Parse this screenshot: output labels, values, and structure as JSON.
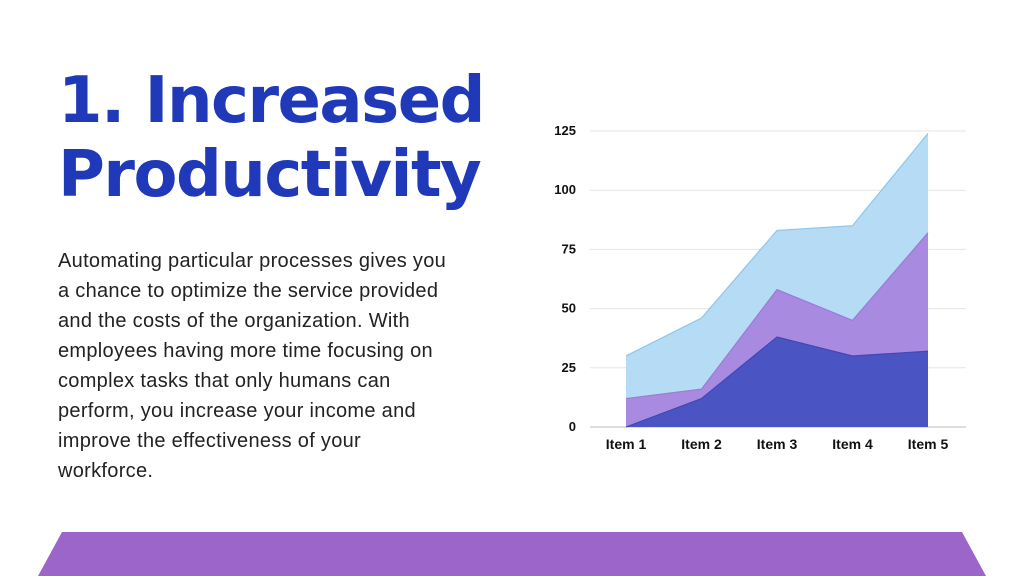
{
  "slide": {
    "title_line1": "1. Increased",
    "title_line2": "Productivity",
    "body": "Automating particular processes gives you a chance to optimize the service provided and the costs of the organization. With employees having more time focusing on complex tasks that only humans can perform, you increase your income and improve the effectiveness of your workforce."
  },
  "colors": {
    "title": "#1f39b8",
    "banner": "#9b65c9",
    "series_bottom": "#4a55c3",
    "series_middle": "#a88ae0",
    "series_top": "#b5dbf5"
  },
  "chart_data": {
    "type": "area",
    "stacked": true,
    "categories": [
      "Item 1",
      "Item 2",
      "Item 3",
      "Item 4",
      "Item 5"
    ],
    "series": [
      {
        "values": [
          0,
          12,
          38,
          30,
          32
        ]
      },
      {
        "values": [
          12,
          4,
          20,
          15,
          50
        ]
      },
      {
        "values": [
          18,
          30,
          25,
          40,
          42
        ]
      }
    ],
    "y_ticks": [
      0,
      25,
      50,
      75,
      100,
      125
    ],
    "ylim": [
      0,
      125
    ],
    "grid": true,
    "legend": "none"
  }
}
